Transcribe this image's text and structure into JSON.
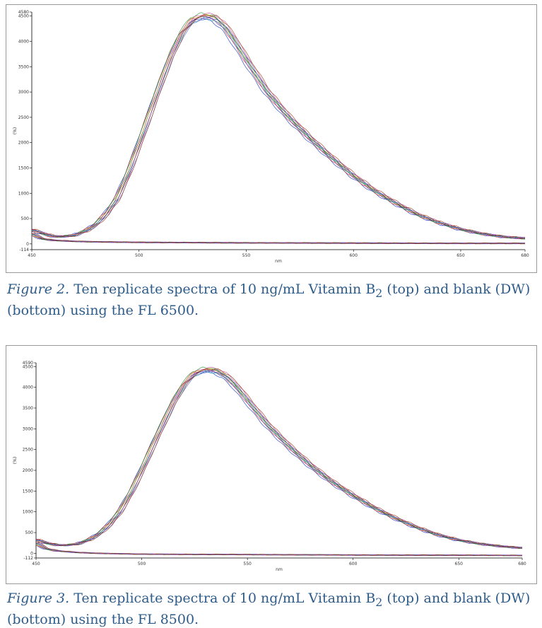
{
  "chart_data": [
    {
      "type": "line",
      "title": "",
      "xlabel": "nm",
      "ylabel": "(%)",
      "xlim": [
        450,
        680
      ],
      "ylim": [
        -114,
        4580
      ],
      "xticks": [
        "450",
        "500",
        "550",
        "600",
        "650",
        "680"
      ],
      "yticks": [
        "-114",
        "0",
        "500",
        "1000",
        "1500",
        "2000",
        "2500",
        "3000",
        "3500",
        "4000",
        "4500",
        "4580"
      ],
      "grid": false,
      "legend": "none",
      "series": [
        {
          "name": "Vitamin B2 replicates (top)",
          "replicates": 10,
          "x": [
            450,
            455,
            460,
            465,
            470,
            475,
            480,
            485,
            490,
            495,
            500,
            505,
            510,
            515,
            520,
            525,
            530,
            535,
            540,
            545,
            550,
            560,
            570,
            580,
            590,
            600,
            610,
            620,
            630,
            640,
            650,
            660,
            670,
            680
          ],
          "values": [
            280,
            210,
            150,
            145,
            170,
            250,
            380,
            600,
            900,
            1380,
            1950,
            2550,
            3150,
            3700,
            4150,
            4420,
            4500,
            4470,
            4300,
            4000,
            3650,
            3000,
            2500,
            2080,
            1700,
            1350,
            1050,
            800,
            580,
            420,
            290,
            200,
            140,
            110
          ]
        },
        {
          "name": "Blank DW replicates (bottom)",
          "replicates": 10,
          "x": [
            450,
            455,
            460,
            470,
            480,
            500,
            550,
            600,
            650,
            680
          ],
          "values": [
            200,
            100,
            70,
            50,
            40,
            30,
            20,
            15,
            10,
            10
          ]
        }
      ]
    },
    {
      "type": "line",
      "title": "",
      "xlabel": "nm",
      "ylabel": "(%)",
      "xlim": [
        450,
        680
      ],
      "ylim": [
        -112,
        4590
      ],
      "xticks": [
        "450",
        "500",
        "550",
        "600",
        "650",
        "680"
      ],
      "yticks": [
        "-112",
        "0",
        "500",
        "1000",
        "1500",
        "2000",
        "2500",
        "3000",
        "3500",
        "4000",
        "4500",
        "4590"
      ],
      "grid": false,
      "legend": "none",
      "series": [
        {
          "name": "Vitamin B2 replicates (top)",
          "replicates": 10,
          "x": [
            450,
            455,
            460,
            465,
            470,
            475,
            480,
            485,
            490,
            495,
            500,
            505,
            510,
            515,
            520,
            525,
            530,
            535,
            540,
            545,
            550,
            560,
            570,
            580,
            590,
            600,
            610,
            620,
            630,
            640,
            650,
            660,
            670,
            680
          ],
          "values": [
            330,
            250,
            200,
            195,
            230,
            320,
            470,
            700,
            1020,
            1460,
            1980,
            2550,
            3100,
            3620,
            4050,
            4330,
            4420,
            4400,
            4270,
            4020,
            3700,
            3080,
            2570,
            2120,
            1730,
            1400,
            1100,
            850,
            630,
            450,
            320,
            230,
            170,
            130
          ]
        },
        {
          "name": "Blank DW replicates (bottom)",
          "replicates": 10,
          "x": [
            450,
            455,
            460,
            470,
            480,
            500,
            550,
            600,
            650,
            680
          ],
          "values": [
            250,
            110,
            60,
            20,
            0,
            -20,
            -30,
            -40,
            -45,
            -50
          ]
        }
      ]
    }
  ],
  "captions": [
    {
      "label": "Figure 2.",
      "text_before": " Ten replicate spectra of 10 ng/mL Vitamin B",
      "subscript": "2",
      "text_after": " (top) and blank (DW) (bottom) using the FL 6500."
    },
    {
      "label": "Figure 3.",
      "text_before": " Ten replicate spectra of 10 ng/mL Vitamin B",
      "subscript": "2",
      "text_after": " (top) and blank (DW) (bottom) using the FL 8500."
    }
  ],
  "series_colors": [
    "#1f3fbf",
    "#d03030",
    "#2a9a3a",
    "#7a2aa0",
    "#d0a020",
    "#20a0b0",
    "#303030",
    "#c05090",
    "#5060d0",
    "#a04020"
  ],
  "axis_color": "#000000"
}
